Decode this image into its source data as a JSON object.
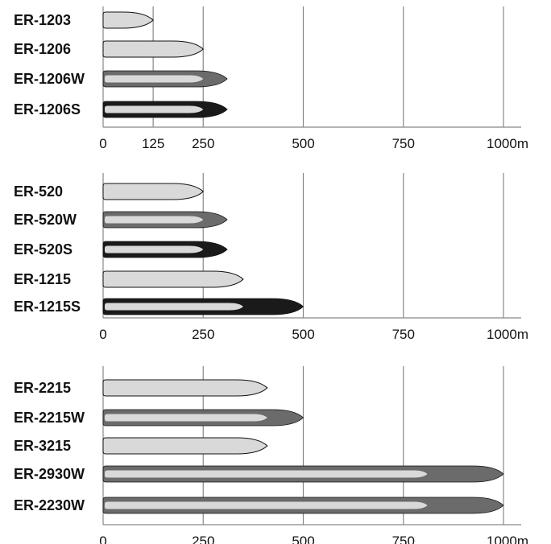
{
  "colors": {
    "light": "#d9d9d9",
    "mid": "#6b6b6b",
    "dark": "#1a1a1a",
    "outline": "#111111",
    "grid": "#888888"
  },
  "chart_data": [
    {
      "type": "bar",
      "orientation": "horizontal",
      "categories": [
        "ER-1203",
        "ER-1206",
        "ER-1206W",
        "ER-1206S"
      ],
      "series": [
        {
          "values": [
            125,
            250,
            250,
            250
          ]
        },
        {
          "values": [
            null,
            null,
            310,
            310
          ]
        }
      ],
      "bar_styles": [
        "light",
        "light",
        "mid",
        "dark"
      ],
      "xlim": [
        0,
        1000
      ],
      "xticks": [
        0,
        125,
        250,
        500,
        750,
        1000
      ],
      "xtick_labels": [
        "0",
        "125",
        "250",
        "500",
        "750",
        "1000m"
      ],
      "grid": true
    },
    {
      "type": "bar",
      "orientation": "horizontal",
      "categories": [
        "ER-520",
        "ER-520W",
        "ER-520S",
        "ER-1215",
        "ER-1215S"
      ],
      "series": [
        {
          "values": [
            250,
            250,
            250,
            350,
            350
          ]
        },
        {
          "values": [
            null,
            310,
            310,
            null,
            500
          ]
        }
      ],
      "bar_styles": [
        "light",
        "mid",
        "dark",
        "light",
        "dark"
      ],
      "xlim": [
        0,
        1000
      ],
      "xticks": [
        0,
        250,
        500,
        750,
        1000
      ],
      "xtick_labels": [
        "0",
        "250",
        "500",
        "750",
        "1000m"
      ],
      "grid": true
    },
    {
      "type": "bar",
      "orientation": "horizontal",
      "categories": [
        "ER-2215",
        "ER-2215W",
        "ER-3215",
        "ER-2930W",
        "ER-2230W"
      ],
      "series": [
        {
          "values": [
            410,
            410,
            410,
            810,
            810
          ]
        },
        {
          "values": [
            null,
            500,
            null,
            1000,
            1000
          ]
        }
      ],
      "bar_styles": [
        "light",
        "mid",
        "light",
        "mid",
        "mid"
      ],
      "xlim": [
        0,
        1000
      ],
      "xticks": [
        0,
        250,
        500,
        750,
        1000
      ],
      "xtick_labels": [
        "0",
        "250",
        "500",
        "750",
        "1000m"
      ],
      "grid": true
    }
  ]
}
